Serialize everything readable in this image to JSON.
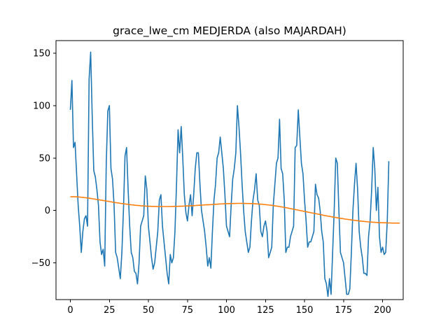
{
  "chart_data": {
    "type": "line",
    "title": "grace_lwe_cm MEDJERDA (also MAJARDAH)",
    "xlabel": "",
    "ylabel": "",
    "xlim": [
      -9.2,
      213.2
    ],
    "ylim": [
      -85,
      162
    ],
    "xticks": [
      0,
      25,
      50,
      75,
      100,
      125,
      150,
      175,
      200
    ],
    "yticks": [
      -50,
      0,
      50,
      100,
      150
    ],
    "grid": false,
    "legend": "none",
    "colors": {
      "series_0": "#1f77b4",
      "series_1": "#ff7f0e"
    },
    "series": [
      {
        "values": [
          96,
          124,
          60,
          65,
          35,
          5,
          -15,
          -40,
          -20,
          -8,
          -5,
          -15,
          125,
          151,
          90,
          38,
          32,
          20,
          5,
          -30,
          -42,
          -37,
          -53,
          45,
          95,
          100,
          40,
          30,
          5,
          -40,
          -45,
          -55,
          -65,
          -40,
          0,
          52,
          60,
          20,
          -15,
          -40,
          -45,
          -58,
          -60,
          -70,
          -50,
          -15,
          -10,
          -5,
          33,
          20,
          -15,
          -30,
          -45,
          -56,
          -50,
          -35,
          -20,
          10,
          15,
          -15,
          -30,
          -45,
          -60,
          -70,
          -42,
          -50,
          -45,
          -20,
          25,
          77,
          55,
          80,
          50,
          15,
          -2,
          -10,
          5,
          15,
          -5,
          15,
          40,
          55,
          55,
          25,
          0,
          -10,
          -20,
          -35,
          -53,
          -45,
          -55,
          -20,
          10,
          25,
          50,
          55,
          70,
          55,
          40,
          15,
          -15,
          -20,
          -25,
          5,
          30,
          40,
          55,
          100,
          80,
          55,
          25,
          0,
          -20,
          -30,
          -40,
          -35,
          -10,
          10,
          20,
          35,
          10,
          5,
          -20,
          -25,
          -15,
          -10,
          -20,
          -45,
          -40,
          -35,
          5,
          25,
          45,
          50,
          87,
          40,
          35,
          10,
          -40,
          -35,
          -35,
          -25,
          -20,
          -15,
          60,
          62,
          96,
          70,
          45,
          35,
          10,
          -10,
          -35,
          -30,
          -30,
          -25,
          -20,
          25,
          15,
          12,
          0,
          -20,
          -30,
          -65,
          -70,
          -82,
          -65,
          -80,
          -40,
          0,
          50,
          45,
          0,
          -40,
          -45,
          -50,
          -65,
          -80,
          -80,
          -75,
          -40,
          0,
          25,
          45,
          20,
          -20,
          -35,
          -45,
          -60,
          -60,
          -62,
          -25,
          -10,
          20,
          60,
          40,
          0,
          22,
          -25,
          -40,
          -35,
          -42,
          -40,
          -10,
          47
        ],
        "start_x": 0
      },
      {
        "values": [
          13,
          13.1,
          13.1,
          13.1,
          13,
          12.9,
          12.8,
          12.6,
          12.5,
          12.3,
          12.1,
          11.9,
          11.7,
          11.5,
          11.2,
          11,
          10.8,
          10.5,
          10.3,
          10,
          9.8,
          9.5,
          9.3,
          9,
          8.8,
          8.5,
          8.3,
          8,
          7.8,
          7.5,
          7.3,
          7.1,
          6.8,
          6.6,
          6.4,
          6.2,
          6,
          5.8,
          5.6,
          5.4,
          5.3,
          5.1,
          4.9,
          4.8,
          4.7,
          4.5,
          4.4,
          4.3,
          4.2,
          4.1,
          4,
          4,
          3.9,
          3.8,
          3.8,
          3.8,
          3.7,
          3.7,
          3.7,
          3.7,
          3.7,
          3.7,
          3.7,
          3.7,
          3.7,
          3.8,
          3.8,
          3.9,
          3.9,
          4,
          4,
          4.1,
          4.1,
          4.2,
          4.3,
          4.3,
          4.4,
          4.5,
          4.6,
          4.6,
          4.7,
          4.8,
          4.9,
          5,
          5.1,
          5.2,
          5.3,
          5.4,
          5.4,
          5.5,
          5.6,
          5.7,
          5.8,
          5.9,
          6,
          6.1,
          6.2,
          6.2,
          6.3,
          6.4,
          6.5,
          6.5,
          6.6,
          6.6,
          6.7,
          6.7,
          6.7,
          6.8,
          6.8,
          6.8,
          6.8,
          6.8,
          6.7,
          6.7,
          6.7,
          6.6,
          6.6,
          6.5,
          6.4,
          6.3,
          6.2,
          6.1,
          6,
          5.9,
          5.7,
          5.6,
          5.4,
          5.2,
          5.1,
          4.9,
          4.7,
          4.4,
          4.2,
          4,
          3.7,
          3.5,
          3.2,
          3,
          2.7,
          2.4,
          2.1,
          1.8,
          1.5,
          1.2,
          0.9,
          0.6,
          0.3,
          0,
          -0.3,
          -0.6,
          -0.9,
          -1.2,
          -1.5,
          -1.8,
          -2.1,
          -2.4,
          -2.7,
          -3,
          -3.3,
          -3.6,
          -3.9,
          -4.2,
          -4.5,
          -4.8,
          -5.1,
          -5.4,
          -5.6,
          -5.9,
          -6.2,
          -6.4,
          -6.7,
          -7,
          -7.2,
          -7.5,
          -7.7,
          -7.9,
          -8.2,
          -8.4,
          -8.6,
          -8.8,
          -9,
          -9.2,
          -9.4,
          -9.6,
          -9.8,
          -10,
          -10.1,
          -10.3,
          -10.4,
          -10.6,
          -10.7,
          -10.9,
          -11,
          -11.1,
          -11.2,
          -11.3,
          -11.4,
          -11.5,
          -11.6,
          -11.7,
          -11.7,
          -11.8,
          -11.8,
          -11.9,
          -11.9,
          -11.9,
          -12,
          -12,
          -12,
          -12,
          -12,
          -12
        ],
        "start_x": 0
      }
    ]
  }
}
